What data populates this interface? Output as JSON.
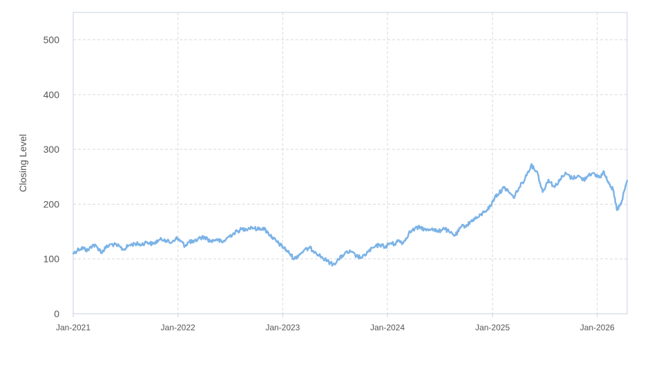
{
  "chart_data": {
    "type": "line",
    "title": "",
    "xlabel": "",
    "ylabel": "Closing Level",
    "ylim": [
      0,
      550
    ],
    "yticks": [
      0,
      100,
      200,
      300,
      400,
      500
    ],
    "xlim": [
      "2021-01-01",
      "2026-04-15"
    ],
    "xticks": [
      {
        "date": "2021-01-01",
        "label": "Jan-2021"
      },
      {
        "date": "2022-01-01",
        "label": "Jan-2022"
      },
      {
        "date": "2023-01-01",
        "label": "Jan-2023"
      },
      {
        "date": "2024-01-01",
        "label": "Jan-2024"
      },
      {
        "date": "2025-01-01",
        "label": "Jan-2025"
      },
      {
        "date": "2026-01-01",
        "label": "Jan-2026"
      }
    ],
    "grid": true,
    "legend": "none",
    "colors": {
      "line": "#7cb3e6",
      "grid": "#d9d9d9",
      "frame": "#c8cfe0"
    },
    "series": [
      {
        "points": [
          [
            "2021-01-01",
            110
          ],
          [
            "2021-01-20",
            118
          ],
          [
            "2021-02-05",
            120
          ],
          [
            "2021-02-20",
            115
          ],
          [
            "2021-03-10",
            126
          ],
          [
            "2021-03-25",
            122
          ],
          [
            "2021-04-10",
            112
          ],
          [
            "2021-04-25",
            121
          ],
          [
            "2021-05-15",
            127
          ],
          [
            "2021-06-05",
            124
          ],
          [
            "2021-06-25",
            117
          ],
          [
            "2021-07-15",
            125
          ],
          [
            "2021-08-05",
            128
          ],
          [
            "2021-08-25",
            126
          ],
          [
            "2021-09-15",
            131
          ],
          [
            "2021-10-05",
            127
          ],
          [
            "2021-10-25",
            134
          ],
          [
            "2021-11-15",
            136
          ],
          [
            "2021-12-05",
            129
          ],
          [
            "2021-12-25",
            138
          ],
          [
            "2022-01-10",
            133
          ],
          [
            "2022-01-25",
            124
          ],
          [
            "2022-02-10",
            132
          ],
          [
            "2022-02-25",
            130
          ],
          [
            "2022-03-15",
            138
          ],
          [
            "2022-04-05",
            140
          ],
          [
            "2022-04-25",
            132
          ],
          [
            "2022-05-15",
            136
          ],
          [
            "2022-06-05",
            130
          ],
          [
            "2022-06-25",
            140
          ],
          [
            "2022-07-15",
            147
          ],
          [
            "2022-08-05",
            153
          ],
          [
            "2022-08-25",
            155
          ],
          [
            "2022-09-15",
            158
          ],
          [
            "2022-10-05",
            154
          ],
          [
            "2022-10-25",
            157
          ],
          [
            "2022-11-10",
            148
          ],
          [
            "2022-11-25",
            140
          ],
          [
            "2022-12-10",
            132
          ],
          [
            "2022-12-25",
            125
          ],
          [
            "2023-01-10",
            118
          ],
          [
            "2023-01-25",
            110
          ],
          [
            "2023-02-10",
            100
          ],
          [
            "2023-02-25",
            107
          ],
          [
            "2023-03-15",
            115
          ],
          [
            "2023-04-05",
            120
          ],
          [
            "2023-04-25",
            113
          ],
          [
            "2023-05-15",
            104
          ],
          [
            "2023-06-05",
            96
          ],
          [
            "2023-06-25",
            90
          ],
          [
            "2023-07-15",
            99
          ],
          [
            "2023-08-05",
            110
          ],
          [
            "2023-08-25",
            113
          ],
          [
            "2023-09-15",
            105
          ],
          [
            "2023-10-05",
            102
          ],
          [
            "2023-10-25",
            113
          ],
          [
            "2023-11-15",
            121
          ],
          [
            "2023-12-05",
            126
          ],
          [
            "2023-12-25",
            122
          ],
          [
            "2024-01-10",
            129
          ],
          [
            "2024-01-25",
            127
          ],
          [
            "2024-02-10",
            134
          ],
          [
            "2024-02-25",
            129
          ],
          [
            "2024-03-15",
            147
          ],
          [
            "2024-04-05",
            155
          ],
          [
            "2024-04-25",
            158
          ],
          [
            "2024-05-15",
            152
          ],
          [
            "2024-06-05",
            156
          ],
          [
            "2024-06-25",
            149
          ],
          [
            "2024-07-15",
            157
          ],
          [
            "2024-08-05",
            148
          ],
          [
            "2024-08-25",
            143
          ],
          [
            "2024-09-15",
            159
          ],
          [
            "2024-10-05",
            162
          ],
          [
            "2024-10-25",
            172
          ],
          [
            "2024-11-15",
            177
          ],
          [
            "2024-12-05",
            187
          ],
          [
            "2024-12-25",
            196
          ],
          [
            "2025-01-10",
            214
          ],
          [
            "2025-01-25",
            221
          ],
          [
            "2025-02-10",
            230
          ],
          [
            "2025-02-25",
            224
          ],
          [
            "2025-03-15",
            212
          ],
          [
            "2025-04-05",
            231
          ],
          [
            "2025-04-25",
            248
          ],
          [
            "2025-05-15",
            271
          ],
          [
            "2025-06-05",
            260
          ],
          [
            "2025-06-25",
            222
          ],
          [
            "2025-07-15",
            245
          ],
          [
            "2025-08-05",
            231
          ],
          [
            "2025-08-25",
            246
          ],
          [
            "2025-09-15",
            256
          ],
          [
            "2025-10-05",
            247
          ],
          [
            "2025-10-25",
            252
          ],
          [
            "2025-11-15",
            244
          ],
          [
            "2025-12-05",
            256
          ],
          [
            "2025-12-25",
            253
          ],
          [
            "2026-01-10",
            250
          ],
          [
            "2026-01-25",
            258
          ],
          [
            "2026-02-10",
            240
          ],
          [
            "2026-02-25",
            226
          ],
          [
            "2026-03-10",
            190
          ],
          [
            "2026-03-25",
            200
          ],
          [
            "2026-04-15",
            243
          ]
        ]
      }
    ]
  }
}
